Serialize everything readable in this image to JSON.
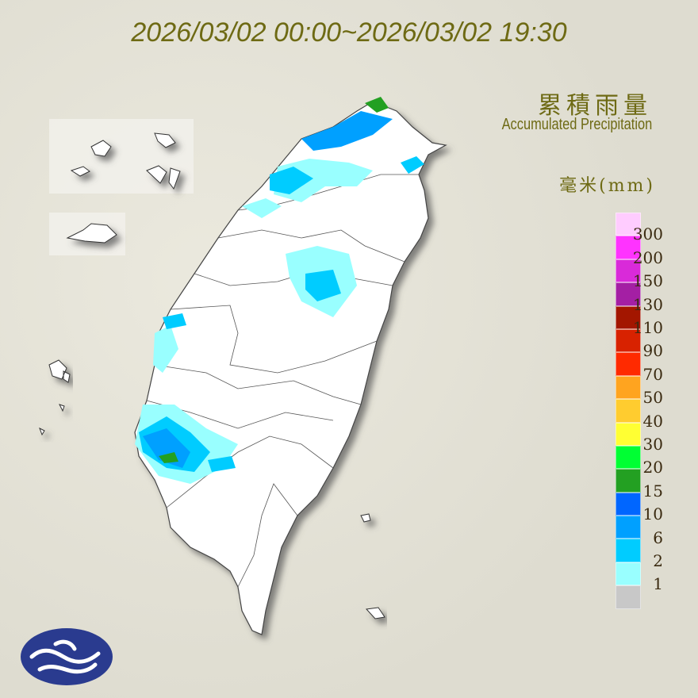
{
  "title": "2026/03/02 00:00~2026/03/02 19:30",
  "legend": {
    "title_zh": "累積雨量",
    "title_en": "Accumulated Precipitation",
    "unit": "毫米(mm)",
    "colors": [
      "#ffccff",
      "#ff33ff",
      "#d92ad9",
      "#a41fa4",
      "#a31600",
      "#d82200",
      "#ff2a00",
      "#ffa41f",
      "#ffcc2f",
      "#ffff33",
      "#00ff33",
      "#23a022",
      "#0066ff",
      "#00a0ff",
      "#00ccff",
      "#99ffff",
      "#c8c8c8"
    ],
    "labels": [
      "300",
      "200",
      "150",
      "130",
      "110",
      "90",
      "70",
      "50",
      "40",
      "30",
      "20",
      "15",
      "10",
      "6",
      "2",
      "1"
    ]
  },
  "logo": "central-weather-administration-logo"
}
